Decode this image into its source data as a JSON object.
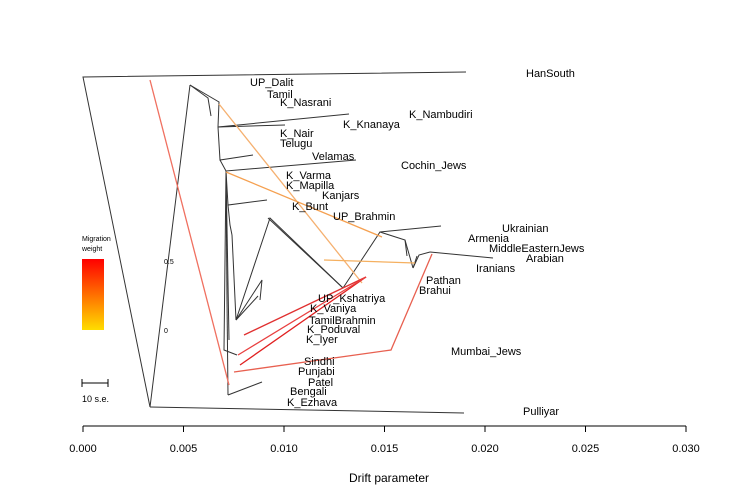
{
  "chart_data": {
    "type": "tree",
    "xlabel": "Drift parameter",
    "xlim": [
      0.0,
      0.03
    ],
    "x_ticks": [
      "0.000",
      "0.005",
      "0.010",
      "0.015",
      "0.020",
      "0.025",
      "0.030"
    ],
    "x_tick_values": [
      0.0,
      0.005,
      0.01,
      0.015,
      0.02,
      0.025,
      0.03
    ],
    "tips": [
      {
        "name": "HanSouth",
        "x": 0.0191
      },
      {
        "name": "UP_Dalit",
        "x": 0.0069
      },
      {
        "name": "Tamil",
        "x": 0.0069
      },
      {
        "name": "K_Nasrani",
        "x": 0.0069
      },
      {
        "name": "K_Nambudiri",
        "x": 0.0118
      },
      {
        "name": "K_Knanaya",
        "x": 0.0133
      },
      {
        "name": "K_Nair",
        "x": 0.01
      },
      {
        "name": "Telugu",
        "x": 0.0071
      },
      {
        "name": "Velamas",
        "x": 0.0085
      },
      {
        "name": "Cochin_Jews",
        "x": 0.0137
      },
      {
        "name": "K_Varma",
        "x": 0.0077
      },
      {
        "name": "K_Mapilla",
        "x": 0.0076
      },
      {
        "name": "Kanjars",
        "x": 0.0078
      },
      {
        "name": "K_Bunt",
        "x": 0.0074
      },
      {
        "name": "UP_Brahmin",
        "x": 0.0076
      },
      {
        "name": "Ukrainian",
        "x": 0.0178
      },
      {
        "name": "Armenia",
        "x": 0.0176
      },
      {
        "name": "MiddleEasternJews",
        "x": 0.0173
      },
      {
        "name": "Arabian",
        "x": 0.0205
      },
      {
        "name": "Iranians",
        "x": 0.0166
      },
      {
        "name": "Pathan",
        "x": 0.0165
      },
      {
        "name": "Brahui",
        "x": 0.0164
      },
      {
        "name": "UP_Kshatriya",
        "x": 0.0078
      },
      {
        "name": "K_Vaniya",
        "x": 0.0081
      },
      {
        "name": "TamilBrahmin",
        "x": 0.0083
      },
      {
        "name": "K_Poduval",
        "x": 0.0082
      },
      {
        "name": "K_Iyer",
        "x": 0.0081
      },
      {
        "name": "Mumbai_Jews",
        "x": 0.0153
      },
      {
        "name": "Sindhi",
        "x": 0.0071
      },
      {
        "name": "Punjabi",
        "x": 0.0073
      },
      {
        "name": "Patel",
        "x": 0.0088
      },
      {
        "name": "Bengali",
        "x": 0.0075
      },
      {
        "name": "K_Ezhava",
        "x": 0.0073
      },
      {
        "name": "Pulliyar",
        "x": 0.0189
      }
    ],
    "legend": {
      "title_line1": "Migration",
      "title_line2": "weight",
      "value_high": "0.5",
      "value_low": "0",
      "colors": [
        "#ff0000",
        "#ffdd00"
      ]
    },
    "scale_bar_label": "10 s.e."
  }
}
